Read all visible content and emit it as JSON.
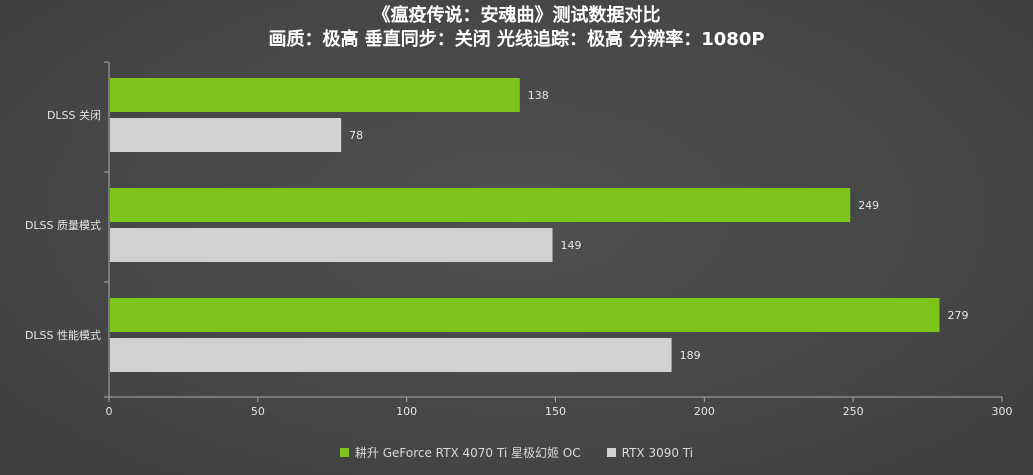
{
  "header": {
    "title": "《瘟疫传说：安魂曲》测试数据对比",
    "subtitle": "画质：极高 垂直同步：关闭 光线追踪：极高 分辨率：1080P"
  },
  "colors": {
    "series_green": "#7dc41b",
    "series_gray": "#d1d1d1",
    "axis": "#aaaaaa",
    "text": "#e6e6e6"
  },
  "chart_data": {
    "type": "bar",
    "orientation": "horizontal",
    "categories": [
      "DLSS 关闭",
      "DLSS 质量模式",
      "DLSS 性能模式"
    ],
    "series": [
      {
        "name": "耕升 GeForce RTX 4070 Ti 星极幻姬 OC",
        "values": [
          138,
          249,
          279
        ]
      },
      {
        "name": "RTX 3090 Ti",
        "values": [
          78,
          149,
          189
        ]
      }
    ],
    "x_ticks": [
      0,
      50,
      100,
      150,
      200,
      250,
      300
    ],
    "xlim": [
      0,
      300
    ],
    "xlabel": "",
    "ylabel": "",
    "grid": false,
    "legend_position": "bottom"
  }
}
